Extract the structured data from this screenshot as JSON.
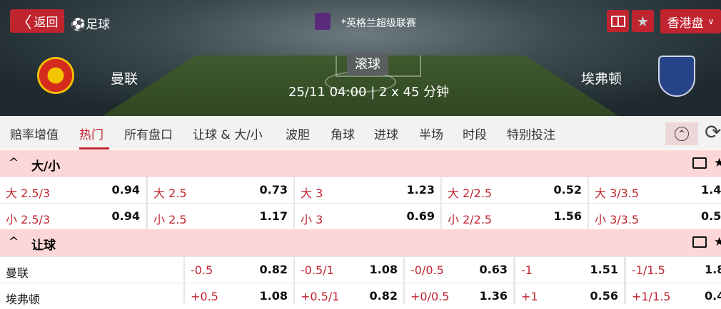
{
  "header": {
    "back": "返回",
    "sport": "足球",
    "league": "*英格兰超级联赛",
    "odds_type": "香港盘",
    "status": "滚球",
    "datetime": "25/11 04:00",
    "duration": "2 x 45 分钟",
    "home": "曼联",
    "away": "埃弗顿",
    "accent": "#c0242f"
  },
  "tabs": [
    "赔率增值",
    "热门",
    "所有盘口",
    "让球 & 大/小",
    "波胆",
    "角球",
    "进球",
    "半场",
    "时段",
    "特别投注"
  ],
  "active_tab": 1,
  "over_under": {
    "title": "大/小",
    "rows": [
      [
        [
          "大 2.5/3",
          "0.94"
        ],
        [
          "大 2.5",
          "0.73"
        ],
        [
          "大 3",
          "1.23"
        ],
        [
          "大 2/2.5",
          "0.52"
        ],
        [
          "大 3/3.5",
          "1.4"
        ]
      ],
      [
        [
          "小 2.5/3",
          "0.94"
        ],
        [
          "小 2.5",
          "1.17"
        ],
        [
          "小 3",
          "0.69"
        ],
        [
          "小 2/2.5",
          "1.56"
        ],
        [
          "小 3/3.5",
          "0.5"
        ]
      ]
    ]
  },
  "handicap": {
    "title": "让球",
    "rows": [
      {
        "team": "曼联",
        "cells": [
          [
            "-0.5",
            "0.82"
          ],
          [
            "-0.5/1",
            "1.08"
          ],
          [
            "-0/0.5",
            "0.63"
          ],
          [
            "-1",
            "1.51"
          ],
          [
            "-1/1.5",
            "1.8"
          ]
        ]
      },
      {
        "team": "埃弗顿",
        "cells": [
          [
            "+0.5",
            "1.08"
          ],
          [
            "+0.5/1",
            "0.82"
          ],
          [
            "+0/0.5",
            "1.36"
          ],
          [
            "+1",
            "0.56"
          ],
          [
            "+1/1.5",
            "0.4"
          ]
        ]
      }
    ]
  }
}
